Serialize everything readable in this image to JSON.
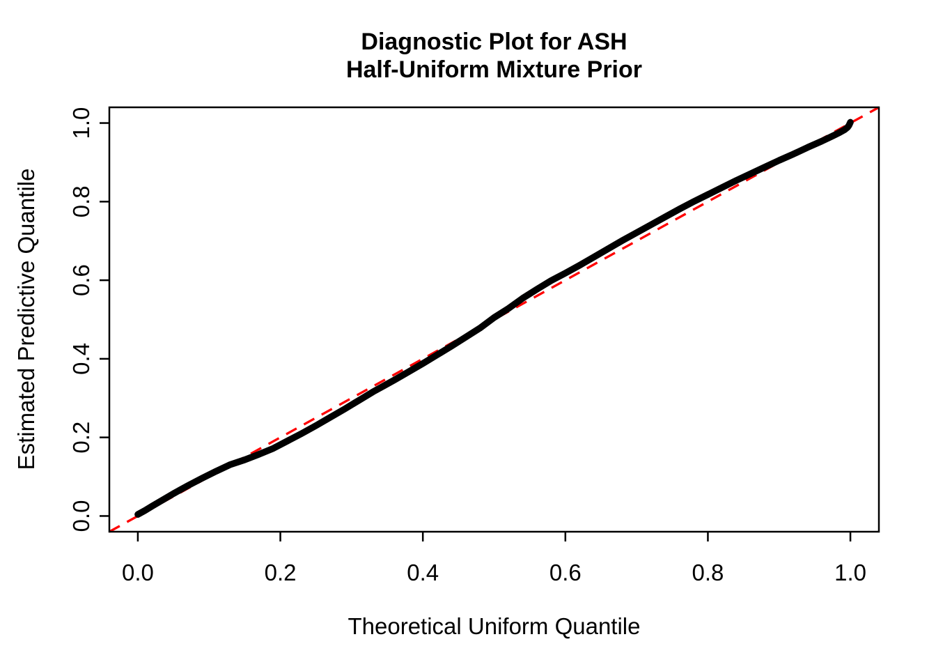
{
  "chart": {
    "title_line1": "Diagnostic Plot for ASH",
    "title_line2": "Half-Uniform Mixture Prior"
  },
  "chart_data": {
    "type": "scatter",
    "subtype": "qq-plot",
    "title": "Diagnostic Plot for ASH\nHalf-Uniform Mixture Prior",
    "xlabel": "Theoretical Uniform Quantile",
    "ylabel": "Estimated Predictive Quantile",
    "xlim": [
      0,
      1
    ],
    "ylim": [
      0,
      1
    ],
    "axis_expansion": 0.04,
    "grid": false,
    "legend": "none",
    "x_ticks": [
      0.0,
      0.2,
      0.4,
      0.6,
      0.8,
      1.0
    ],
    "x_tick_labels": [
      "0.0",
      "0.2",
      "0.4",
      "0.6",
      "0.8",
      "1.0"
    ],
    "y_ticks": [
      0.0,
      0.2,
      0.4,
      0.6,
      0.8,
      1.0
    ],
    "y_tick_labels": [
      "0.0",
      "0.2",
      "0.4",
      "0.6",
      "0.8",
      "1.0"
    ],
    "colors": {
      "background": "#FFFFFF",
      "frame": "#000000",
      "text": "#000000",
      "points": "#000000",
      "reference_line": "#FF0000"
    },
    "reference_line": {
      "type": "identity",
      "equation": "y = x",
      "style": "dashed",
      "color": "#FF0000"
    },
    "series": [
      {
        "name": "estimated-vs-theoretical-uniform-quantiles",
        "color": "#000000",
        "points": [
          [
            0.0,
            0.004
          ],
          [
            0.004,
            0.008
          ],
          [
            0.01,
            0.014
          ],
          [
            0.02,
            0.025
          ],
          [
            0.035,
            0.041
          ],
          [
            0.05,
            0.057
          ],
          [
            0.07,
            0.077
          ],
          [
            0.09,
            0.096
          ],
          [
            0.11,
            0.114
          ],
          [
            0.13,
            0.131
          ],
          [
            0.15,
            0.143
          ],
          [
            0.17,
            0.157
          ],
          [
            0.19,
            0.172
          ],
          [
            0.21,
            0.191
          ],
          [
            0.23,
            0.21
          ],
          [
            0.25,
            0.23
          ],
          [
            0.27,
            0.251
          ],
          [
            0.29,
            0.272
          ],
          [
            0.31,
            0.294
          ],
          [
            0.33,
            0.316
          ],
          [
            0.345,
            0.331
          ],
          [
            0.36,
            0.346
          ],
          [
            0.38,
            0.367
          ],
          [
            0.4,
            0.388
          ],
          [
            0.42,
            0.41
          ],
          [
            0.44,
            0.432
          ],
          [
            0.46,
            0.455
          ],
          [
            0.48,
            0.478
          ],
          [
            0.5,
            0.505
          ],
          [
            0.52,
            0.528
          ],
          [
            0.54,
            0.554
          ],
          [
            0.56,
            0.577
          ],
          [
            0.58,
            0.599
          ],
          [
            0.6,
            0.618
          ],
          [
            0.62,
            0.638
          ],
          [
            0.64,
            0.659
          ],
          [
            0.66,
            0.68
          ],
          [
            0.68,
            0.701
          ],
          [
            0.7,
            0.721
          ],
          [
            0.72,
            0.741
          ],
          [
            0.74,
            0.761
          ],
          [
            0.76,
            0.781
          ],
          [
            0.78,
            0.8
          ],
          [
            0.8,
            0.818
          ],
          [
            0.82,
            0.836
          ],
          [
            0.84,
            0.854
          ],
          [
            0.86,
            0.871
          ],
          [
            0.88,
            0.888
          ],
          [
            0.9,
            0.905
          ],
          [
            0.92,
            0.921
          ],
          [
            0.94,
            0.938
          ],
          [
            0.96,
            0.954
          ],
          [
            0.975,
            0.967
          ],
          [
            0.985,
            0.976
          ],
          [
            0.992,
            0.983
          ],
          [
            0.996,
            0.989
          ],
          [
            0.998,
            0.994
          ],
          [
            1.0,
            1.002
          ]
        ]
      }
    ]
  }
}
